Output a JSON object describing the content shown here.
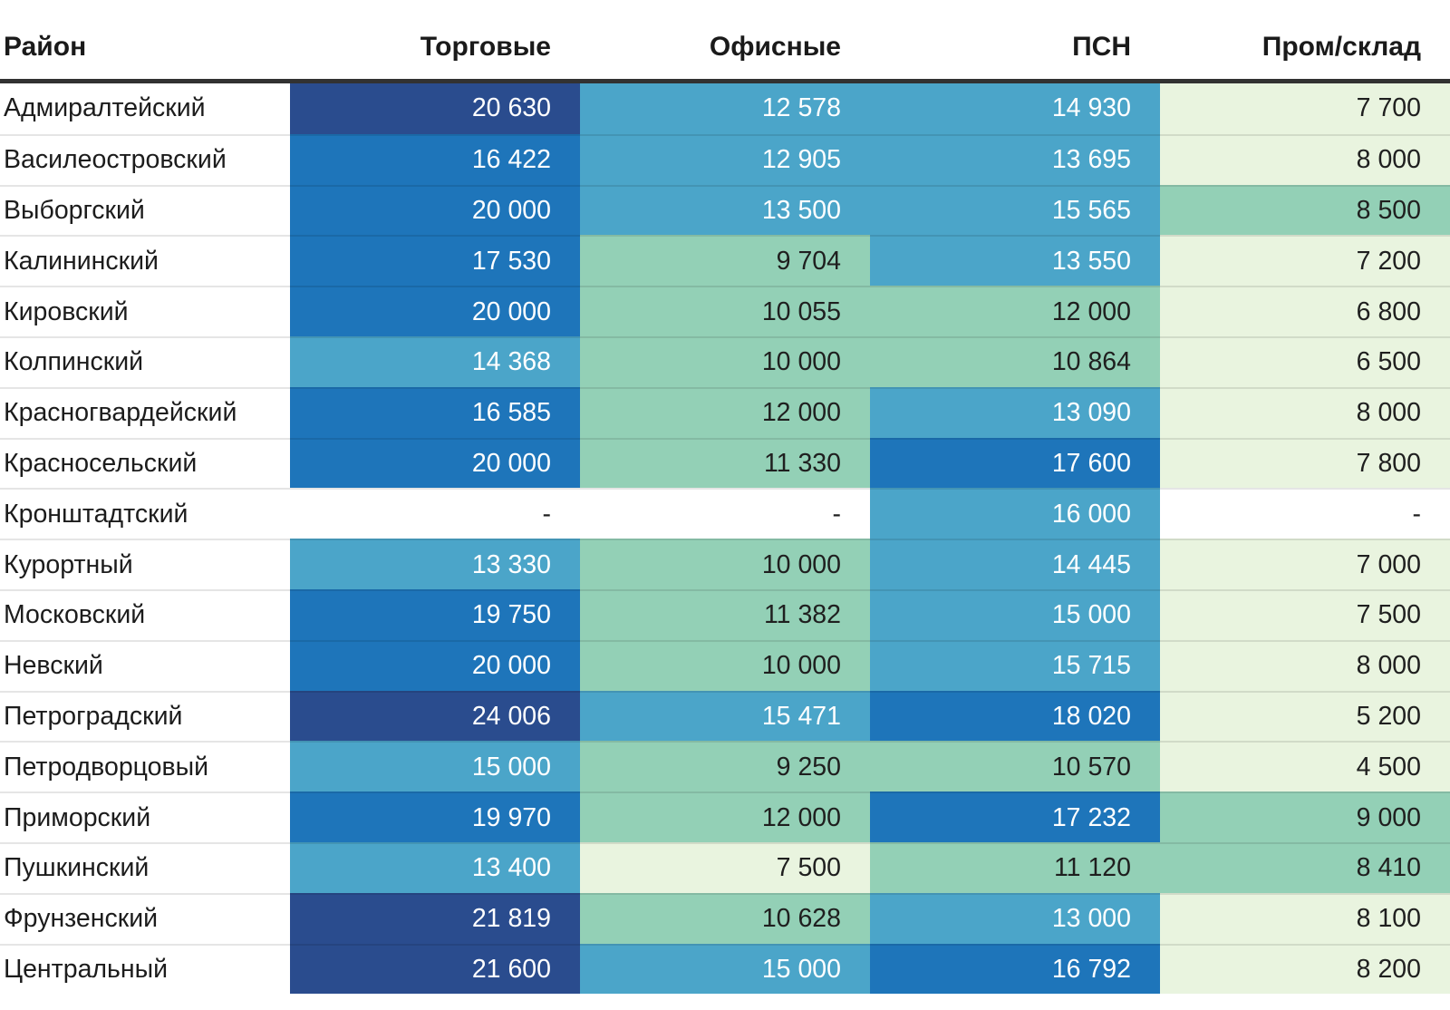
{
  "palette": {
    "bins": [
      {
        "max": 8400,
        "bg": "#e9f4df",
        "text": "#1f1f1f",
        "name": "very-light-green"
      },
      {
        "max": 12400,
        "bg": "#93d0b6",
        "text": "#1f1f1f",
        "name": "green"
      },
      {
        "max": 16400,
        "bg": "#4ba5c9",
        "text": "#ffffff",
        "name": "light-blue"
      },
      {
        "max": 20400,
        "bg": "#1e75ba",
        "text": "#ffffff",
        "name": "medium-blue"
      },
      {
        "max": null,
        "bg": "#2a4c8e",
        "text": "#ffffff",
        "name": "navy"
      }
    ],
    "empty_bg": "#ffffff",
    "empty_text": "#1f1f1f",
    "header_text": "#1a1a1a",
    "header_rule": "#323232",
    "row_separator": "rgba(0,0,0,0.10)"
  },
  "chart_data": {
    "type": "heatmap",
    "columns": [
      "Район",
      "Торговые",
      "Офисные",
      "ПСН",
      "Пром/склад"
    ],
    "empty_marker": "-",
    "number_format": "space-grouped",
    "rows": [
      {
        "district": "Адмиралтейский",
        "values": [
          20630,
          12578,
          14930,
          7700
        ]
      },
      {
        "district": "Василеостровский",
        "values": [
          16422,
          12905,
          13695,
          8000
        ]
      },
      {
        "district": "Выборгский",
        "values": [
          20000,
          13500,
          15565,
          8500
        ]
      },
      {
        "district": "Калининский",
        "values": [
          17530,
          9704,
          13550,
          7200
        ]
      },
      {
        "district": "Кировский",
        "values": [
          20000,
          10055,
          12000,
          6800
        ]
      },
      {
        "district": "Колпинский",
        "values": [
          14368,
          10000,
          10864,
          6500
        ]
      },
      {
        "district": "Красногвардейский",
        "values": [
          16585,
          12000,
          13090,
          8000
        ]
      },
      {
        "district": "Красносельский",
        "values": [
          20000,
          11330,
          17600,
          7800
        ]
      },
      {
        "district": "Кронштадтский",
        "values": [
          null,
          null,
          16000,
          null
        ]
      },
      {
        "district": "Курортный",
        "values": [
          13330,
          10000,
          14445,
          7000
        ]
      },
      {
        "district": "Московский",
        "values": [
          19750,
          11382,
          15000,
          7500
        ]
      },
      {
        "district": "Невский",
        "values": [
          20000,
          10000,
          15715,
          8000
        ]
      },
      {
        "district": "Петроградский",
        "values": [
          24006,
          15471,
          18020,
          5200
        ]
      },
      {
        "district": "Петродворцовый",
        "values": [
          15000,
          9250,
          10570,
          4500
        ]
      },
      {
        "district": "Приморский",
        "values": [
          19970,
          12000,
          17232,
          9000
        ]
      },
      {
        "district": "Пушкинский",
        "values": [
          13400,
          7500,
          11120,
          8410
        ]
      },
      {
        "district": "Фрунзенский",
        "values": [
          21819,
          10628,
          13000,
          8100
        ]
      },
      {
        "district": "Центральный",
        "values": [
          21600,
          15000,
          16792,
          8200
        ]
      }
    ]
  }
}
